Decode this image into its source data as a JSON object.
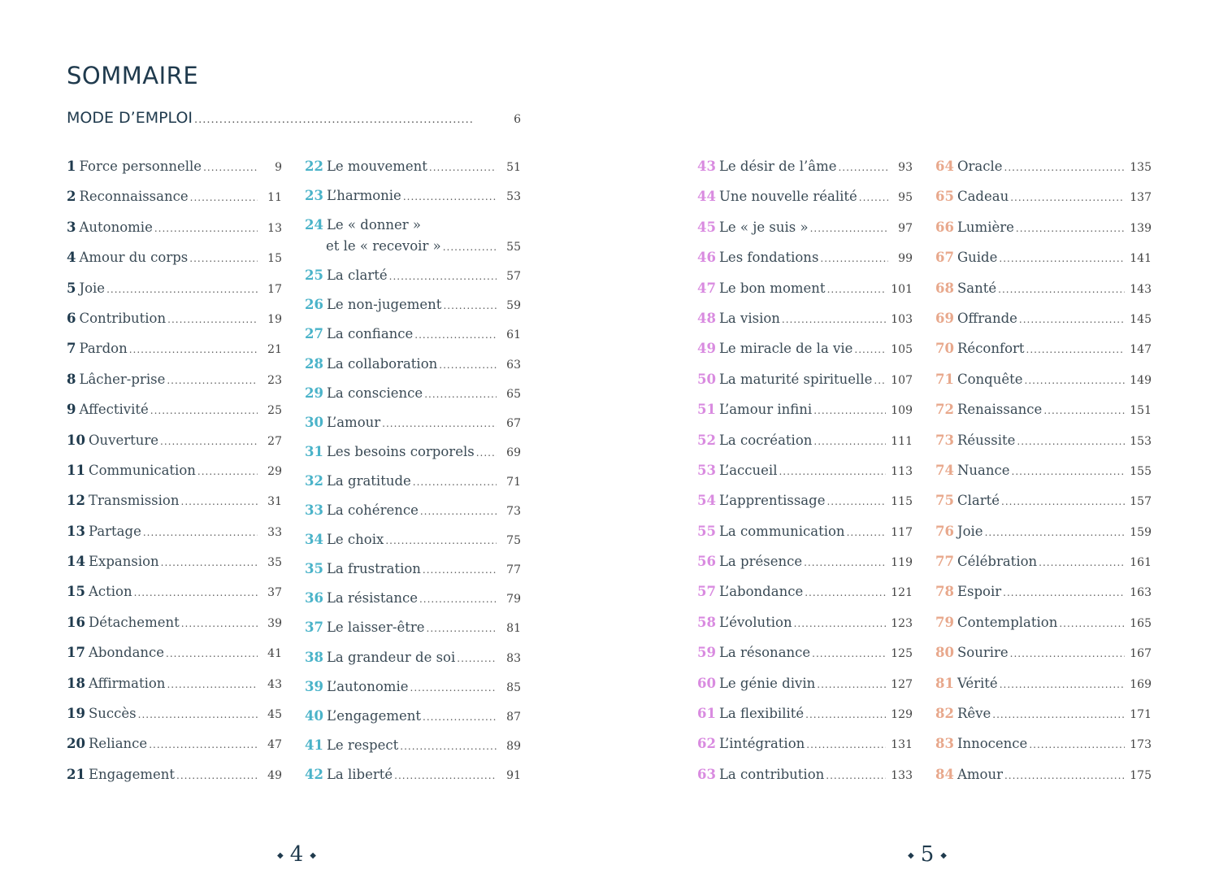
{
  "title": "SOMMAIRE",
  "mode_emploi": {
    "label": "MODE D’EMPLOI",
    "page": "6"
  },
  "colors": {
    "col1": "#1f3a4d",
    "col2": "#4ab3c9",
    "col3": "#d98be0",
    "col4": "#e8a88c"
  },
  "columns": [
    [
      [
        "1",
        "Force personnelle",
        "9"
      ],
      [
        "2",
        "Reconnaissance",
        "11"
      ],
      [
        "3",
        "Autonomie",
        "13"
      ],
      [
        "4",
        "Amour du corps",
        "15"
      ],
      [
        "5",
        "Joie",
        "17"
      ],
      [
        "6",
        "Contribution",
        "19"
      ],
      [
        "7",
        "Pardon",
        "21"
      ],
      [
        "8",
        "Lâcher-prise",
        "23"
      ],
      [
        "9",
        "Affectivité",
        "25"
      ],
      [
        "10",
        "Ouverture",
        "27"
      ],
      [
        "11",
        "Communication",
        "29"
      ],
      [
        "12",
        "Transmission",
        "31"
      ],
      [
        "13",
        "Partage",
        "33"
      ],
      [
        "14",
        "Expansion",
        "35"
      ],
      [
        "15",
        "Action",
        "37"
      ],
      [
        "16",
        "Détachement",
        "39"
      ],
      [
        "17",
        "Abondance",
        "41"
      ],
      [
        "18",
        "Affirmation",
        "43"
      ],
      [
        "19",
        "Succès",
        "45"
      ],
      [
        "20",
        "Reliance",
        "47"
      ],
      [
        "21",
        "Engagement",
        "49"
      ]
    ],
    [
      [
        "22",
        "Le mouvement",
        "51"
      ],
      [
        "23",
        "L’harmonie",
        "53"
      ],
      [
        "24",
        "Le « donner »",
        "55",
        "et le « recevoir »"
      ],
      [
        "25",
        "La clarté",
        "57"
      ],
      [
        "26",
        "Le non-jugement",
        "59"
      ],
      [
        "27",
        "La confiance",
        "61"
      ],
      [
        "28",
        "La collaboration",
        "63"
      ],
      [
        "29",
        "La conscience",
        "65"
      ],
      [
        "30",
        "L’amour",
        "67"
      ],
      [
        "31",
        "Les besoins corporels",
        "69"
      ],
      [
        "32",
        "La gratitude",
        "71"
      ],
      [
        "33",
        "La cohérence",
        "73"
      ],
      [
        "34",
        "Le choix",
        "75"
      ],
      [
        "35",
        "La frustration",
        "77"
      ],
      [
        "36",
        "La résistance",
        "79"
      ],
      [
        "37",
        "Le laisser-être",
        "81"
      ],
      [
        "38",
        "La grandeur de soi",
        "83"
      ],
      [
        "39",
        "L’autonomie",
        "85"
      ],
      [
        "40",
        "L’engagement",
        "87"
      ],
      [
        "41",
        "Le respect",
        "89"
      ],
      [
        "42",
        "La liberté",
        "91"
      ]
    ],
    [
      [
        "43",
        "Le désir de l’âme",
        "93"
      ],
      [
        "44",
        "Une nouvelle réalité",
        "95"
      ],
      [
        "45",
        "Le « je suis »",
        "97"
      ],
      [
        "46",
        "Les fondations",
        "99"
      ],
      [
        "47",
        "Le bon moment",
        "101"
      ],
      [
        "48",
        "La vision",
        "103"
      ],
      [
        "49",
        "Le miracle de la vie",
        "105"
      ],
      [
        "50",
        "La maturité spirituelle",
        "107"
      ],
      [
        "51",
        "L’amour infini",
        "109"
      ],
      [
        "52",
        "La cocréation",
        "111"
      ],
      [
        "53",
        "L’accueil",
        "113"
      ],
      [
        "54",
        "L’apprentissage",
        "115"
      ],
      [
        "55",
        "La communication",
        "117"
      ],
      [
        "56",
        "La présence",
        "119"
      ],
      [
        "57",
        "L’abondance",
        "121"
      ],
      [
        "58",
        "L’évolution",
        "123"
      ],
      [
        "59",
        "La résonance",
        "125"
      ],
      [
        "60",
        "Le génie divin",
        "127"
      ],
      [
        "61",
        "La flexibilité",
        "129"
      ],
      [
        "62",
        "L’intégration",
        "131"
      ],
      [
        "63",
        "La contribution",
        "133"
      ]
    ],
    [
      [
        "64",
        "Oracle",
        "135"
      ],
      [
        "65",
        "Cadeau",
        "137"
      ],
      [
        "66",
        "Lumière",
        "139"
      ],
      [
        "67",
        "Guide",
        "141"
      ],
      [
        "68",
        "Santé",
        "143"
      ],
      [
        "69",
        "Offrande",
        "145"
      ],
      [
        "70",
        "Réconfort",
        "147"
      ],
      [
        "71",
        "Conquête",
        "149"
      ],
      [
        "72",
        "Renaissance",
        "151"
      ],
      [
        "73",
        "Réussite",
        "153"
      ],
      [
        "74",
        "Nuance",
        "155"
      ],
      [
        "75",
        "Clarté",
        "157"
      ],
      [
        "76",
        "Joie",
        "159"
      ],
      [
        "77",
        "Célébration",
        "161"
      ],
      [
        "78",
        "Espoir",
        "163"
      ],
      [
        "79",
        "Contemplation",
        "165"
      ],
      [
        "80",
        "Sourire",
        "167"
      ],
      [
        "81",
        "Vérité",
        "169"
      ],
      [
        "82",
        "Rêve",
        "171"
      ],
      [
        "83",
        "Innocence",
        "173"
      ],
      [
        "84",
        "Amour",
        "175"
      ]
    ]
  ],
  "folios": {
    "left": "4",
    "right": "5"
  }
}
